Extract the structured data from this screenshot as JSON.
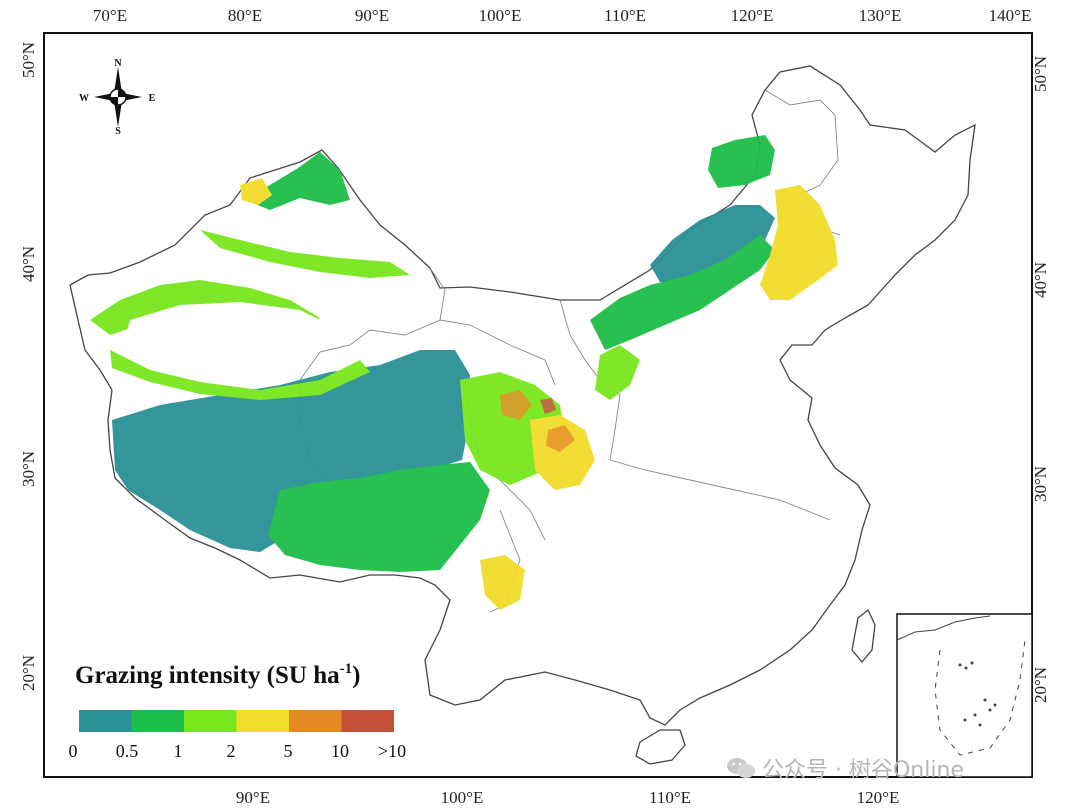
{
  "map": {
    "top_lon_labels": [
      "70°E",
      "80°E",
      "90°E",
      "100°E",
      "110°E",
      "120°E",
      "130°E",
      "140°E"
    ],
    "bottom_lon_labels": [
      "90°E",
      "100°E",
      "110°E",
      "120°E"
    ],
    "left_lat_labels": [
      "50°N",
      "40°N",
      "30°N",
      "20°N"
    ],
    "right_lat_labels": [
      "50°N",
      "40°N",
      "30°N",
      "20°N"
    ]
  },
  "compass": {
    "n": "N",
    "s": "S",
    "e": "E",
    "w": "W"
  },
  "legend": {
    "title_main": "Grazing intensity (SU ha",
    "title_sup": "-1",
    "title_end": ")",
    "bins": [
      {
        "from": "0",
        "color": "#2a9196"
      },
      {
        "from": "0.5",
        "color": "#1cbd48"
      },
      {
        "from": "1",
        "color": "#78e61c"
      },
      {
        "from": "2",
        "color": "#f2dc2a"
      },
      {
        "from": "5",
        "color": "#e58a22"
      },
      {
        "from": "10",
        "color": "#c6513a"
      }
    ],
    "labels": [
      "0",
      "0.5",
      "1",
      "2",
      "5",
      "10",
      ">10"
    ]
  },
  "watermark": {
    "text": "公众号 · 树谷Online"
  }
}
